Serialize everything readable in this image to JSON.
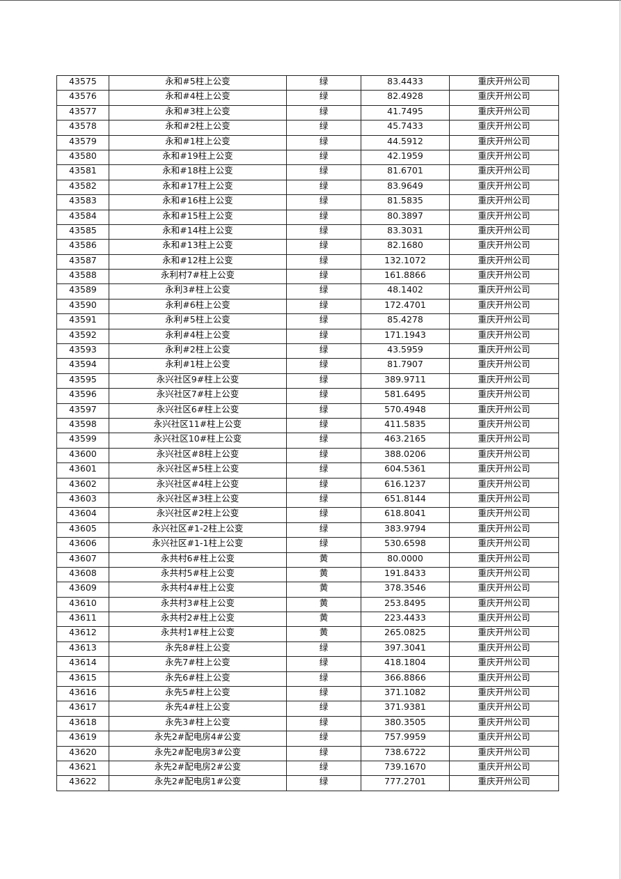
{
  "table": {
    "rows": [
      [
        "43575",
        "永和#5柱上公变",
        "绿",
        "83.4433",
        "重庆开州公司"
      ],
      [
        "43576",
        "永和#4柱上公变",
        "绿",
        "82.4928",
        "重庆开州公司"
      ],
      [
        "43577",
        "永和#3柱上公变",
        "绿",
        "41.7495",
        "重庆开州公司"
      ],
      [
        "43578",
        "永和#2柱上公变",
        "绿",
        "45.7433",
        "重庆开州公司"
      ],
      [
        "43579",
        "永和#1柱上公变",
        "绿",
        "44.5912",
        "重庆开州公司"
      ],
      [
        "43580",
        "永和#19柱上公变",
        "绿",
        "42.1959",
        "重庆开州公司"
      ],
      [
        "43581",
        "永和#18柱上公变",
        "绿",
        "81.6701",
        "重庆开州公司"
      ],
      [
        "43582",
        "永和#17柱上公变",
        "绿",
        "83.9649",
        "重庆开州公司"
      ],
      [
        "43583",
        "永和#16柱上公变",
        "绿",
        "81.5835",
        "重庆开州公司"
      ],
      [
        "43584",
        "永和#15柱上公变",
        "绿",
        "80.3897",
        "重庆开州公司"
      ],
      [
        "43585",
        "永和#14柱上公变",
        "绿",
        "83.3031",
        "重庆开州公司"
      ],
      [
        "43586",
        "永和#13柱上公变",
        "绿",
        "82.1680",
        "重庆开州公司"
      ],
      [
        "43587",
        "永和#12柱上公变",
        "绿",
        "132.1072",
        "重庆开州公司"
      ],
      [
        "43588",
        "永利村7#柱上公变",
        "绿",
        "161.8866",
        "重庆开州公司"
      ],
      [
        "43589",
        "永利3#柱上公变",
        "绿",
        "48.1402",
        "重庆开州公司"
      ],
      [
        "43590",
        "永利#6柱上公变",
        "绿",
        "172.4701",
        "重庆开州公司"
      ],
      [
        "43591",
        "永利#5柱上公变",
        "绿",
        "85.4278",
        "重庆开州公司"
      ],
      [
        "43592",
        "永利#4柱上公变",
        "绿",
        "171.1943",
        "重庆开州公司"
      ],
      [
        "43593",
        "永利#2柱上公变",
        "绿",
        "43.5959",
        "重庆开州公司"
      ],
      [
        "43594",
        "永利#1柱上公变",
        "绿",
        "81.7907",
        "重庆开州公司"
      ],
      [
        "43595",
        "永兴社区9#柱上公变",
        "绿",
        "389.9711",
        "重庆开州公司"
      ],
      [
        "43596",
        "永兴社区7#柱上公变",
        "绿",
        "581.6495",
        "重庆开州公司"
      ],
      [
        "43597",
        "永兴社区6#柱上公变",
        "绿",
        "570.4948",
        "重庆开州公司"
      ],
      [
        "43598",
        "永兴社区11#柱上公变",
        "绿",
        "411.5835",
        "重庆开州公司"
      ],
      [
        "43599",
        "永兴社区10#柱上公变",
        "绿",
        "463.2165",
        "重庆开州公司"
      ],
      [
        "43600",
        "永兴社区#8柱上公变",
        "绿",
        "388.0206",
        "重庆开州公司"
      ],
      [
        "43601",
        "永兴社区#5柱上公变",
        "绿",
        "604.5361",
        "重庆开州公司"
      ],
      [
        "43602",
        "永兴社区#4柱上公变",
        "绿",
        "616.1237",
        "重庆开州公司"
      ],
      [
        "43603",
        "永兴社区#3柱上公变",
        "绿",
        "651.8144",
        "重庆开州公司"
      ],
      [
        "43604",
        "永兴社区#2柱上公变",
        "绿",
        "618.8041",
        "重庆开州公司"
      ],
      [
        "43605",
        "永兴社区#1-2柱上公变",
        "绿",
        "383.9794",
        "重庆开州公司"
      ],
      [
        "43606",
        "永兴社区#1-1柱上公变",
        "绿",
        "530.6598",
        "重庆开州公司"
      ],
      [
        "43607",
        "永共村6#柱上公变",
        "黄",
        "80.0000",
        "重庆开州公司"
      ],
      [
        "43608",
        "永共村5#柱上公变",
        "黄",
        "191.8433",
        "重庆开州公司"
      ],
      [
        "43609",
        "永共村4#柱上公变",
        "黄",
        "378.3546",
        "重庆开州公司"
      ],
      [
        "43610",
        "永共村3#柱上公变",
        "黄",
        "253.8495",
        "重庆开州公司"
      ],
      [
        "43611",
        "永共村2#柱上公变",
        "黄",
        "223.4433",
        "重庆开州公司"
      ],
      [
        "43612",
        "永共村1#柱上公变",
        "黄",
        "265.0825",
        "重庆开州公司"
      ],
      [
        "43613",
        "永先8#柱上公变",
        "绿",
        "397.3041",
        "重庆开州公司"
      ],
      [
        "43614",
        "永先7#柱上公变",
        "绿",
        "418.1804",
        "重庆开州公司"
      ],
      [
        "43615",
        "永先6#柱上公变",
        "绿",
        "366.8866",
        "重庆开州公司"
      ],
      [
        "43616",
        "永先5#柱上公变",
        "绿",
        "371.1082",
        "重庆开州公司"
      ],
      [
        "43617",
        "永先4#柱上公变",
        "绿",
        "371.9381",
        "重庆开州公司"
      ],
      [
        "43618",
        "永先3#柱上公变",
        "绿",
        "380.3505",
        "重庆开州公司"
      ],
      [
        "43619",
        "永先2#配电房4#公变",
        "绿",
        "757.9959",
        "重庆开州公司"
      ],
      [
        "43620",
        "永先2#配电房3#公变",
        "绿",
        "738.6722",
        "重庆开州公司"
      ],
      [
        "43621",
        "永先2#配电房2#公变",
        "绿",
        "739.1670",
        "重庆开州公司"
      ],
      [
        "43622",
        "永先2#配电房1#公变",
        "绿",
        "777.2701",
        "重庆开州公司"
      ]
    ]
  }
}
